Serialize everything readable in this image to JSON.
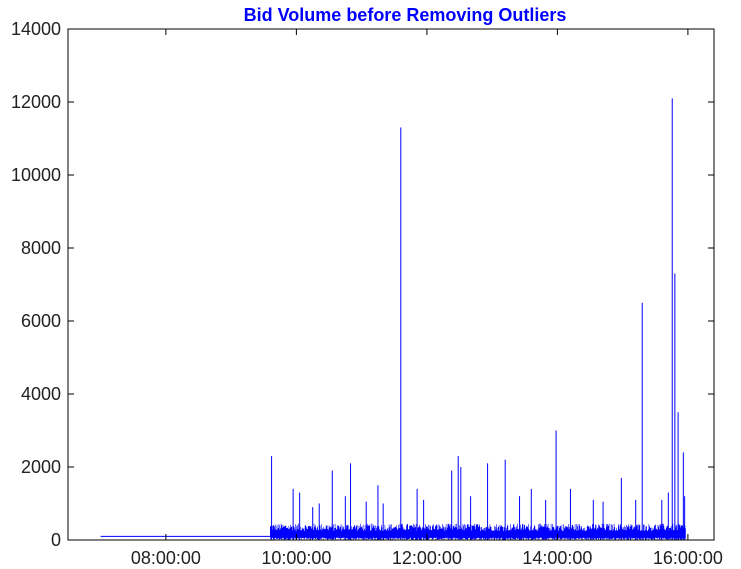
{
  "chart_data": {
    "type": "line",
    "title": "Bid Volume before Removing Outliers",
    "title_color": "#0000ff",
    "series_color": "#0000ff",
    "xlabel": "",
    "ylabel": "",
    "x_unit": "hours of day",
    "xlim": [
      6.5,
      16.4
    ],
    "ylim": [
      0,
      14000
    ],
    "grid": false,
    "legend": "none",
    "x_ticks": [
      {
        "value": 8,
        "label": "08:00:00"
      },
      {
        "value": 10,
        "label": "10:00:00"
      },
      {
        "value": 12,
        "label": "12:00:00"
      },
      {
        "value": 14,
        "label": "14:00:00"
      },
      {
        "value": 16,
        "label": "16:00:00"
      }
    ],
    "y_ticks": [
      {
        "value": 0,
        "label": "0"
      },
      {
        "value": 2000,
        "label": "2000"
      },
      {
        "value": 4000,
        "label": "4000"
      },
      {
        "value": 6000,
        "label": "6000"
      },
      {
        "value": 8000,
        "label": "8000"
      },
      {
        "value": 10000,
        "label": "10000"
      },
      {
        "value": 12000,
        "label": "12000"
      },
      {
        "value": 14000,
        "label": "14000"
      }
    ],
    "series": [
      {
        "baseline_segment": {
          "x": [
            7.0,
            9.6
          ],
          "y": 100
        },
        "dense_activity": {
          "x": [
            9.6,
            15.97
          ],
          "typical_min": 0,
          "typical_max": 450
        },
        "spikes": [
          {
            "x": 9.62,
            "y": 2300
          },
          {
            "x": 9.95,
            "y": 1400
          },
          {
            "x": 10.05,
            "y": 1300
          },
          {
            "x": 10.25,
            "y": 900
          },
          {
            "x": 10.35,
            "y": 1000
          },
          {
            "x": 10.55,
            "y": 1900
          },
          {
            "x": 10.75,
            "y": 1200
          },
          {
            "x": 10.83,
            "y": 2100
          },
          {
            "x": 11.07,
            "y": 1050
          },
          {
            "x": 11.25,
            "y": 1500
          },
          {
            "x": 11.33,
            "y": 1000
          },
          {
            "x": 11.6,
            "y": 11300
          },
          {
            "x": 11.85,
            "y": 1400
          },
          {
            "x": 11.95,
            "y": 1100
          },
          {
            "x": 12.38,
            "y": 1900
          },
          {
            "x": 12.48,
            "y": 2300
          },
          {
            "x": 12.52,
            "y": 2000
          },
          {
            "x": 12.67,
            "y": 1200
          },
          {
            "x": 12.93,
            "y": 2100
          },
          {
            "x": 13.2,
            "y": 2200
          },
          {
            "x": 13.42,
            "y": 1200
          },
          {
            "x": 13.6,
            "y": 1400
          },
          {
            "x": 13.82,
            "y": 1100
          },
          {
            "x": 13.98,
            "y": 3000
          },
          {
            "x": 14.2,
            "y": 1400
          },
          {
            "x": 14.55,
            "y": 1100
          },
          {
            "x": 14.7,
            "y": 1050
          },
          {
            "x": 14.98,
            "y": 1700
          },
          {
            "x": 15.2,
            "y": 1100
          },
          {
            "x": 15.3,
            "y": 6500
          },
          {
            "x": 15.6,
            "y": 1100
          },
          {
            "x": 15.7,
            "y": 1300
          },
          {
            "x": 15.76,
            "y": 12100
          },
          {
            "x": 15.8,
            "y": 7300
          },
          {
            "x": 15.85,
            "y": 3500
          },
          {
            "x": 15.93,
            "y": 2400
          },
          {
            "x": 15.95,
            "y": 1200
          }
        ]
      }
    ]
  }
}
